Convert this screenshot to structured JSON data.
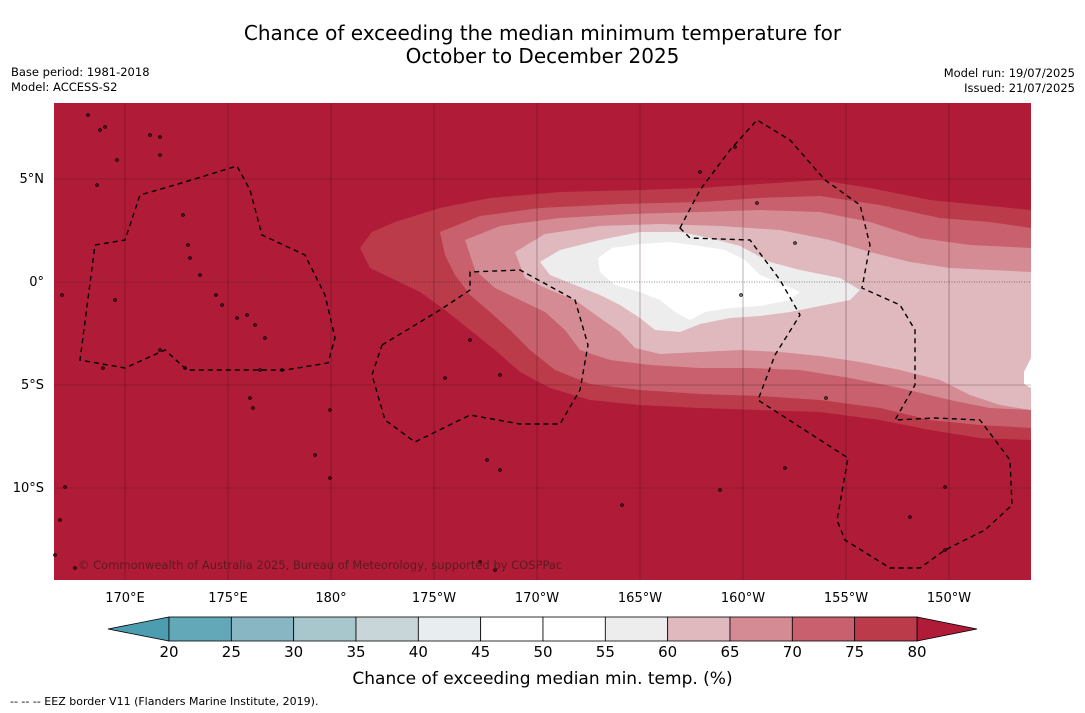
{
  "title_line1": "Chance of exceeding the median minimum temperature for",
  "title_line2": "October to December 2025",
  "base_period": "Base period: 1981-2018",
  "model": "Model: ACCESS-S2",
  "model_run": "Model run: 19/07/2025",
  "issued": "Issued: 21/07/2025",
  "lon_ticks": [
    "170°E",
    "175°E",
    "180°",
    "175°W",
    "170°W",
    "165°W",
    "160°W",
    "155°W",
    "150°W"
  ],
  "lat_ticks": [
    "5°N",
    "0°",
    "5°S",
    "10°S"
  ],
  "colorbar": {
    "ticks": [
      "20",
      "25",
      "30",
      "35",
      "40",
      "45",
      "50",
      "55",
      "60",
      "65",
      "70",
      "75",
      "80"
    ],
    "colors": [
      "#63a8b8",
      "#88b6c2",
      "#a8c7cc",
      "#c8d6da",
      "#e8eef0",
      "#ffffff",
      "#ffffff",
      "#ededed",
      "#e0b9bf",
      "#d48b94",
      "#c8616d",
      "#bb3b4a"
    ],
    "under_color": "#4c9daf",
    "over_color": "#b01c37",
    "label": "Chance of exceeding median min. temp. (%)"
  },
  "copyright": "© Commonwealth of Australia 2025, Bureau of Meteorology, supported by COSPPac",
  "footnote": "--  --  -- EEZ border V11 (Flanders Marine Institute, 2019).",
  "map_colors": {
    "background": "#b01c37",
    "c65": "#bb3b4a",
    "c70": "#c8616d",
    "c75": "#d48b94",
    "c80": "#e0b9bf",
    "c85": "#ededed",
    "c90": "#ffffff"
  }
}
